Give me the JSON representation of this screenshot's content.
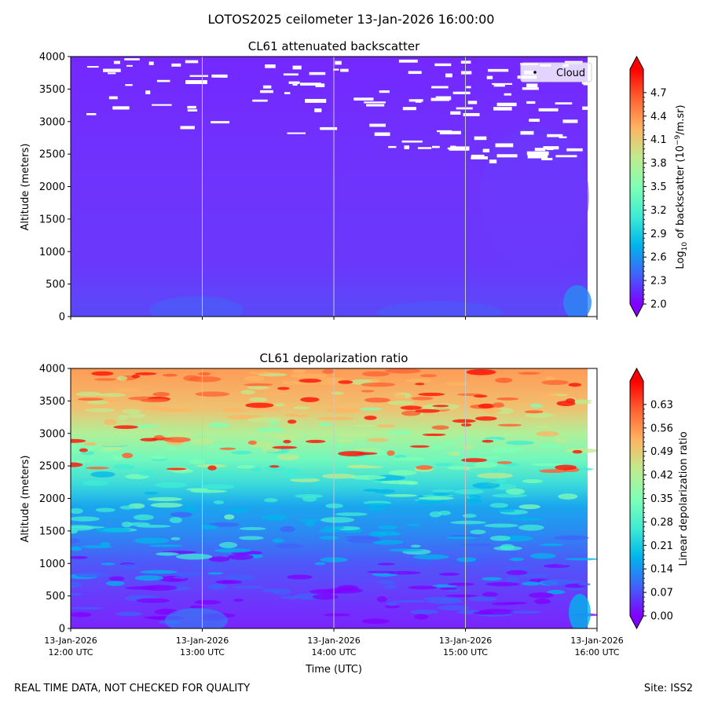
{
  "figure": {
    "suptitle": "LOTOS2025 ceilometer 13-Jan-2026 16:00:00",
    "footer_left": "REAL TIME DATA, NOT CHECKED FOR QUALITY",
    "footer_right": "Site: ISS2",
    "xlabel": "Time (UTC)"
  },
  "chart_data": [
    {
      "type": "heatmap",
      "title": "CL61 attenuated backscatter",
      "ylabel": "Altitude (meters)",
      "x_ticks": [
        {
          "date": "13-Jan-2026",
          "time": "12:00 UTC"
        },
        {
          "date": "13-Jan-2026",
          "time": "13:00 UTC"
        },
        {
          "date": "13-Jan-2026",
          "time": "14:00 UTC"
        },
        {
          "date": "13-Jan-2026",
          "time": "15:00 UTC"
        },
        {
          "date": "13-Jan-2026",
          "time": "16:00 UTC"
        }
      ],
      "x_range": [
        "13-Jan-2026 12:00 UTC",
        "13-Jan-2026 16:00 UTC"
      ],
      "y_ticks": [
        0,
        500,
        1000,
        1500,
        2000,
        2500,
        3000,
        3500,
        4000
      ],
      "y_range": [
        0,
        4000
      ],
      "show_x_tick_labels": false,
      "vertical_gridlines": true,
      "legend": {
        "label": "Cloud",
        "placement": "top-right"
      },
      "colorbar": {
        "label_main": "Log",
        "label_sub": "10",
        "label_rest": " of backscatter (10",
        "label_sup": "−9",
        "label_end": "/m.sr)",
        "ticks": [
          "2.0",
          "2.3",
          "2.6",
          "2.9",
          "3.2",
          "3.5",
          "3.8",
          "4.1",
          "4.4",
          "4.7"
        ],
        "range": [
          2.0,
          5.0
        ],
        "colormap": "rainbow",
        "extend": "both"
      },
      "field_description": "low backscatter (~2.2-2.4) throughout with slightly higher values near surface",
      "cloud_mask_color": "#ffffff"
    },
    {
      "type": "heatmap",
      "title": "CL61 depolarization ratio",
      "ylabel": "Altitude (meters)",
      "x_ticks": [
        {
          "date": "13-Jan-2026",
          "time": "12:00 UTC"
        },
        {
          "date": "13-Jan-2026",
          "time": "13:00 UTC"
        },
        {
          "date": "13-Jan-2026",
          "time": "14:00 UTC"
        },
        {
          "date": "13-Jan-2026",
          "time": "15:00 UTC"
        },
        {
          "date": "13-Jan-2026",
          "time": "16:00 UTC"
        }
      ],
      "x_range": [
        "13-Jan-2026 12:00 UTC",
        "13-Jan-2026 16:00 UTC"
      ],
      "y_ticks": [
        0,
        500,
        1000,
        1500,
        2000,
        2500,
        3000,
        3500,
        4000
      ],
      "y_range": [
        0,
        4000
      ],
      "show_x_tick_labels": true,
      "vertical_gridlines": true,
      "colorbar": {
        "label": "Linear depolarization ratio",
        "ticks": [
          "0.00",
          "0.07",
          "0.14",
          "0.21",
          "0.28",
          "0.35",
          "0.42",
          "0.49",
          "0.56",
          "0.63"
        ],
        "range": [
          0.0,
          0.7
        ],
        "colormap": "rainbow",
        "extend": "both"
      },
      "field_description": "depolarization increases with altitude: ~0.05 near surface, ~0.2 at 1500 m, ~0.4-0.5 above 2500 m with red patches above 3000 m"
    }
  ],
  "colors": {
    "grid": "#c8c8c8",
    "rainbow": [
      "#8000ff",
      "#4062fa",
      "#00b5eb",
      "#40ecd4",
      "#80ffb4",
      "#c0eb8d",
      "#ffb462",
      "#ff6232",
      "#ff0000"
    ]
  }
}
